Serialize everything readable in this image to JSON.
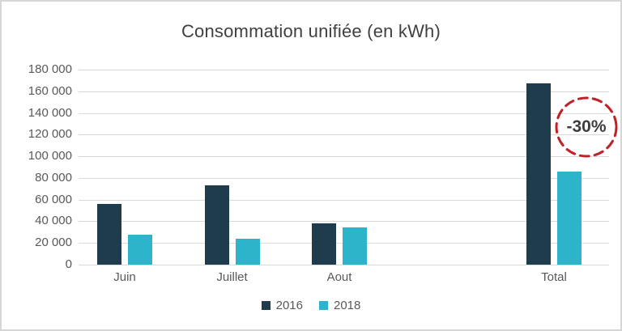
{
  "title": "Consommation unifiée (en kWh)",
  "chart_data": {
    "type": "bar",
    "title": "Consommation unifiée (en kWh)",
    "categories": [
      "Juin",
      "Juillet",
      "Aout",
      "Total"
    ],
    "series": [
      {
        "name": "2016",
        "color": "#1f3c4d",
        "values": [
          56000,
          73000,
          38000,
          167000
        ]
      },
      {
        "name": "2018",
        "color": "#2eb4ca",
        "values": [
          28000,
          24000,
          34000,
          86000
        ]
      }
    ],
    "ylim": [
      0,
      180000
    ],
    "y_ticks": [
      {
        "value": 0,
        "label": "0"
      },
      {
        "value": 20000,
        "label": "20 000"
      },
      {
        "value": 40000,
        "label": "40 000"
      },
      {
        "value": 60000,
        "label": "60 000"
      },
      {
        "value": 80000,
        "label": "80 000"
      },
      {
        "value": 100000,
        "label": "100 000"
      },
      {
        "value": 120000,
        "label": "120 000"
      },
      {
        "value": 140000,
        "label": "140 000"
      },
      {
        "value": 160000,
        "label": "160 000"
      },
      {
        "value": 180000,
        "label": "180 000"
      }
    ],
    "grid": true,
    "gridline_color": "#d9d9d9",
    "axis_text_color": "#595959",
    "title_color": "#404040",
    "legend_position": "bottom",
    "slot_count": 5,
    "category_slots": [
      0,
      1,
      2,
      4
    ],
    "annotation": {
      "text": "-30%",
      "text_color": "#3d3d3d",
      "circle_color": "#c02026",
      "style": "dashed-circle"
    }
  }
}
